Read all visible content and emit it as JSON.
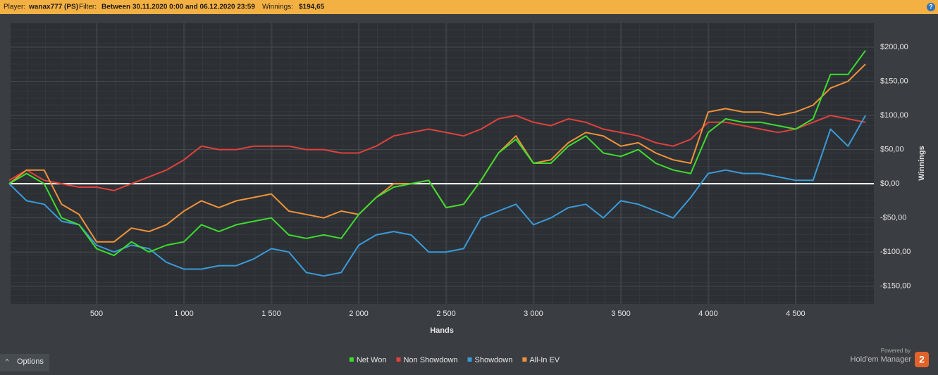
{
  "header": {
    "player_label": "Player:",
    "player": "wanax777 (PS)",
    "filter_label": "Filter:",
    "filter": "Between 30.11.2020 0:00 and 06.12.2020 23:59",
    "winnings_label": "Winnings:",
    "winnings": "$194,65",
    "help": "?"
  },
  "footer": {
    "options": "Options",
    "powered": "Powered by",
    "brand": "Hold'em Manager",
    "brand_number": "2"
  },
  "chart_data": {
    "type": "line",
    "x_label": "Hands",
    "y_label": "Winnings",
    "x": [
      0,
      100,
      200,
      300,
      400,
      500,
      600,
      700,
      800,
      900,
      1000,
      1100,
      1200,
      1300,
      1400,
      1500,
      1600,
      1700,
      1800,
      1900,
      2000,
      2100,
      2200,
      2300,
      2400,
      2500,
      2600,
      2700,
      2800,
      2900,
      3000,
      3100,
      3200,
      3300,
      3400,
      3500,
      3600,
      3700,
      3800,
      3900,
      4000,
      4100,
      4200,
      4300,
      4400,
      4500,
      4600,
      4700,
      4800,
      4900
    ],
    "series": [
      {
        "name": "Net Won",
        "color": "#3ddc2e",
        "values": [
          0,
          15,
          0,
          -50,
          -60,
          -95,
          -105,
          -85,
          -100,
          -90,
          -85,
          -60,
          -70,
          -60,
          -55,
          -50,
          -75,
          -80,
          -75,
          -80,
          -45,
          -20,
          -5,
          0,
          5,
          -35,
          -30,
          5,
          45,
          65,
          30,
          30,
          55,
          70,
          45,
          40,
          50,
          30,
          20,
          15,
          75,
          95,
          90,
          90,
          85,
          80,
          95,
          160,
          160,
          195
        ]
      },
      {
        "name": "Non Showdown",
        "color": "#e0413c",
        "values": [
          5,
          20,
          5,
          0,
          -5,
          -5,
          -10,
          0,
          10,
          20,
          35,
          55,
          50,
          50,
          55,
          55,
          55,
          50,
          50,
          45,
          45,
          55,
          70,
          75,
          80,
          75,
          70,
          80,
          95,
          100,
          90,
          85,
          95,
          90,
          80,
          75,
          70,
          60,
          55,
          65,
          90,
          90,
          85,
          80,
          75,
          80,
          90,
          100,
          95,
          90
        ]
      },
      {
        "name": "Showdown",
        "color": "#3a9ad9",
        "values": [
          0,
          -25,
          -30,
          -55,
          -60,
          -90,
          -100,
          -90,
          -95,
          -115,
          -125,
          -125,
          -120,
          -120,
          -110,
          -95,
          -100,
          -130,
          -135,
          -130,
          -90,
          -75,
          -70,
          -75,
          -100,
          -100,
          -95,
          -50,
          -40,
          -30,
          -60,
          -50,
          -35,
          -30,
          -50,
          -25,
          -30,
          -40,
          -50,
          -20,
          15,
          20,
          15,
          15,
          10,
          5,
          5,
          80,
          55,
          100
        ]
      },
      {
        "name": "All-In EV",
        "color": "#f0923a",
        "values": [
          0,
          20,
          20,
          -30,
          -45,
          -85,
          -85,
          -65,
          -70,
          -60,
          -40,
          -25,
          -35,
          -25,
          -20,
          -15,
          -40,
          -45,
          -50,
          -40,
          -45,
          -20,
          0,
          0,
          5,
          -35,
          -30,
          5,
          45,
          70,
          30,
          35,
          60,
          75,
          70,
          55,
          60,
          45,
          35,
          30,
          105,
          110,
          105,
          105,
          100,
          105,
          115,
          140,
          150,
          175
        ]
      }
    ],
    "xlim": [
      8,
      4948
    ],
    "ylim": [
      -176,
      235
    ],
    "xticks": [
      500,
      {
        "value": 1000,
        "label": "1 000"
      },
      {
        "value": 1500,
        "label": "1 500"
      },
      {
        "value": 2000,
        "label": "2 000"
      },
      {
        "value": 2500,
        "label": "2 500"
      },
      {
        "value": 3000,
        "label": "3 000"
      },
      {
        "value": 3500,
        "label": "3 500"
      },
      {
        "value": 4000,
        "label": "4 000"
      },
      {
        "value": 4500,
        "label": "4 500"
      }
    ],
    "yticks": [
      {
        "value": -150,
        "label": "-$150,00"
      },
      {
        "value": -100,
        "label": "-$100,00"
      },
      {
        "value": -50,
        "label": "-$50,00"
      },
      {
        "value": 0,
        "label": "$0,00"
      },
      {
        "value": 50,
        "label": "$50,00"
      },
      {
        "value": 100,
        "label": "$100,00"
      },
      {
        "value": 150,
        "label": "$150,00"
      },
      {
        "value": 200,
        "label": "$200,00"
      }
    ],
    "grid": true
  }
}
